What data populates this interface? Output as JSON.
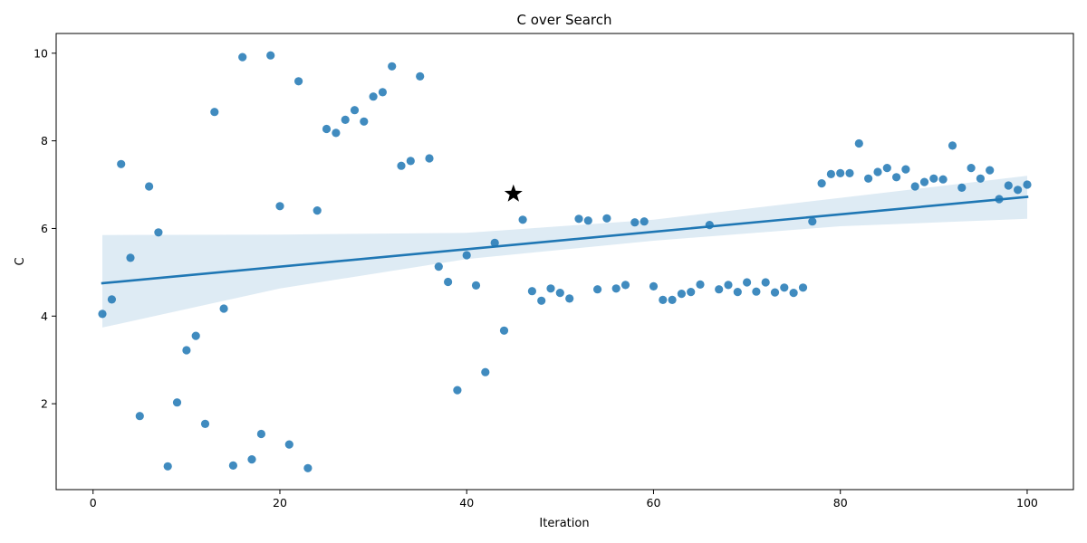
{
  "chart_data": {
    "type": "scatter",
    "title": "C over Search",
    "xlabel": "Iteration",
    "ylabel": "C",
    "xlim": [
      -3.95,
      104.95
    ],
    "ylim": [
      0.04,
      10.45
    ],
    "xticks": [
      0,
      20,
      40,
      60,
      80,
      100
    ],
    "yticks": [
      2,
      4,
      6,
      8,
      10
    ],
    "grid": false,
    "legend": "none",
    "colors": {
      "points": "#1f77b4",
      "line": "#1f77b4",
      "band": "#1f77b4",
      "marker": "#000000"
    },
    "points": {
      "x": [
        1,
        2,
        3,
        4,
        5,
        6,
        7,
        8,
        9,
        10,
        11,
        12,
        13,
        14,
        15,
        16,
        17,
        18,
        19,
        20,
        21,
        22,
        23,
        24,
        25,
        26,
        27,
        28,
        29,
        30,
        31,
        32,
        33,
        34,
        35,
        36,
        37,
        38,
        39,
        40,
        41,
        42,
        43,
        44,
        45,
        46,
        47,
        48,
        49,
        50,
        51,
        52,
        53,
        54,
        55,
        56,
        57,
        58,
        59,
        60,
        61,
        62,
        63,
        64,
        65,
        66,
        67,
        68,
        69,
        70,
        71,
        72,
        73,
        74,
        75,
        76,
        77,
        78,
        79,
        80,
        81,
        82,
        83,
        84,
        85,
        86,
        87,
        88,
        89,
        90,
        91,
        92,
        93,
        94,
        95,
        96,
        97,
        98,
        99,
        100
      ],
      "y": [
        4.05,
        4.38,
        7.47,
        5.33,
        1.72,
        6.96,
        5.91,
        0.57,
        2.03,
        3.22,
        3.55,
        1.54,
        8.66,
        4.17,
        0.59,
        9.91,
        0.73,
        1.31,
        9.95,
        6.51,
        1.07,
        9.36,
        0.53,
        6.41,
        8.27,
        8.18,
        8.48,
        8.7,
        8.44,
        9.01,
        9.11,
        9.7,
        7.43,
        7.54,
        9.47,
        7.6,
        5.13,
        4.78,
        2.31,
        5.39,
        4.7,
        2.72,
        5.67,
        3.67,
        null,
        6.2,
        4.57,
        4.35,
        4.63,
        4.53,
        4.4,
        6.22,
        6.18,
        4.61,
        6.23,
        4.63,
        4.71,
        6.14,
        6.16,
        4.68,
        4.37,
        4.37,
        4.51,
        4.55,
        4.72,
        6.08,
        4.61,
        4.71,
        4.55,
        4.77,
        4.56,
        4.77,
        4.54,
        4.65,
        4.53,
        4.65,
        6.16,
        7.03,
        7.24,
        7.26,
        7.26,
        7.94,
        7.14,
        7.29,
        7.38,
        7.17,
        7.35,
        6.96,
        7.06,
        7.14,
        7.12,
        7.89,
        6.93,
        7.38,
        7.14,
        7.33,
        6.67,
        6.98,
        6.88,
        7.0
      ]
    },
    "highlight": {
      "x": 45,
      "y": 6.79,
      "marker": "star"
    },
    "regression": {
      "x": [
        1,
        100
      ],
      "y": [
        4.75,
        6.72
      ]
    },
    "confidence_band": {
      "x": [
        1,
        20,
        40,
        60,
        80,
        100
      ],
      "lower": [
        3.74,
        4.63,
        5.3,
        5.72,
        6.05,
        6.22
      ],
      "upper": [
        5.85,
        5.86,
        5.9,
        6.2,
        6.7,
        7.2
      ]
    }
  }
}
